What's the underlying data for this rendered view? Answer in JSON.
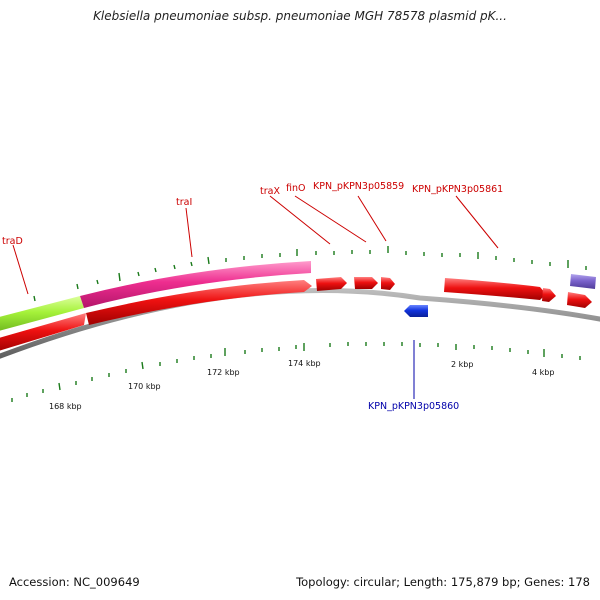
{
  "title": "Klebsiella pneumoniae subsp. pneumoniae MGH 78578 plasmid pK...",
  "footer": {
    "accession": "Accession: NC_009649",
    "summary": "Topology: circular; Length: 175,879 bp; Genes: 178"
  },
  "colors": {
    "backbone": "#8a8a8a",
    "forward_gene": "#ee1111",
    "reverse_gene": "#1133dd",
    "feature_magenta": "#ee2d8f",
    "feature_green": "#a5f23a",
    "feature_purple": "#7b63cc",
    "tick": "#1a7a1a",
    "label_red": "#cc0000",
    "label_blue": "#0000aa"
  },
  "tick_labels": [
    "168 kbp",
    "170 kbp",
    "172 kbp",
    "174 kbp",
    "2 kbp",
    "4 kbp"
  ],
  "gene_labels": [
    {
      "text": "traD",
      "strand": "forward"
    },
    {
      "text": "traI",
      "strand": "forward"
    },
    {
      "text": "traX",
      "strand": "forward"
    },
    {
      "text": "finO",
      "strand": "forward"
    },
    {
      "text": "KPN_pKPN3p05859",
      "strand": "forward"
    },
    {
      "text": "KPN_pKPN3p05861",
      "strand": "forward"
    },
    {
      "text": "KPN_pKPN3p05860",
      "strand": "reverse"
    }
  ]
}
